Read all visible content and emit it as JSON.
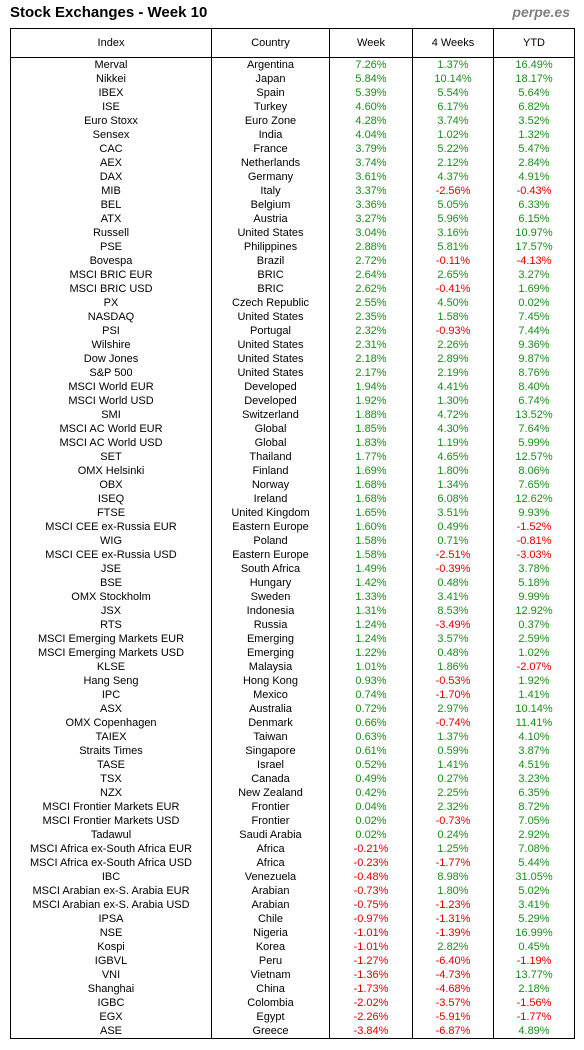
{
  "title": "Stock Exchanges - Week 10",
  "brand": "perpe.es",
  "columns": [
    "Index",
    "Country",
    "Week",
    "4 Weeks",
    "YTD"
  ],
  "colors": {
    "positive": "#1f8a1f",
    "negative": "#e00000"
  },
  "rows": [
    [
      "Merval",
      "Argentina",
      "7.26%",
      "1.37%",
      "16.49%"
    ],
    [
      "Nikkei",
      "Japan",
      "5.84%",
      "10.14%",
      "18.17%"
    ],
    [
      "IBEX",
      "Spain",
      "5.39%",
      "5.54%",
      "5.64%"
    ],
    [
      "ISE",
      "Turkey",
      "4.60%",
      "6.17%",
      "6.82%"
    ],
    [
      "Euro Stoxx",
      "Euro Zone",
      "4.28%",
      "3.74%",
      "3.52%"
    ],
    [
      "Sensex",
      "India",
      "4.04%",
      "1.02%",
      "1.32%"
    ],
    [
      "CAC",
      "France",
      "3.79%",
      "5.22%",
      "5.47%"
    ],
    [
      "AEX",
      "Netherlands",
      "3.74%",
      "2.12%",
      "2.84%"
    ],
    [
      "DAX",
      "Germany",
      "3.61%",
      "4.37%",
      "4.91%"
    ],
    [
      "MIB",
      "Italy",
      "3.37%",
      "-2.56%",
      "-0.43%"
    ],
    [
      "BEL",
      "Belgium",
      "3.36%",
      "5.05%",
      "6.33%"
    ],
    [
      "ATX",
      "Austria",
      "3.27%",
      "5.96%",
      "6.15%"
    ],
    [
      "Russell",
      "United States",
      "3.04%",
      "3.16%",
      "10.97%"
    ],
    [
      "PSE",
      "Philippines",
      "2.88%",
      "5.81%",
      "17.57%"
    ],
    [
      "Bovespa",
      "Brazil",
      "2.72%",
      "-0.11%",
      "-4.13%"
    ],
    [
      "MSCI BRIC EUR",
      "BRIC",
      "2.64%",
      "2.65%",
      "3.27%"
    ],
    [
      "MSCI BRIC USD",
      "BRIC",
      "2.62%",
      "-0.41%",
      "1.69%"
    ],
    [
      "PX",
      "Czech Republic",
      "2.55%",
      "4.50%",
      "0.02%"
    ],
    [
      "NASDAQ",
      "United States",
      "2.35%",
      "1.58%",
      "7.45%"
    ],
    [
      "PSI",
      "Portugal",
      "2.32%",
      "-0.93%",
      "7.44%"
    ],
    [
      "Wilshire",
      "United States",
      "2.31%",
      "2.26%",
      "9.36%"
    ],
    [
      "Dow Jones",
      "United States",
      "2.18%",
      "2.89%",
      "9.87%"
    ],
    [
      "S&P 500",
      "United States",
      "2.17%",
      "2.19%",
      "8.76%"
    ],
    [
      "MSCI World EUR",
      "Developed",
      "1.94%",
      "4.41%",
      "8.40%"
    ],
    [
      "MSCI World USD",
      "Developed",
      "1.92%",
      "1.30%",
      "6.74%"
    ],
    [
      "SMI",
      "Switzerland",
      "1.88%",
      "4.72%",
      "13.52%"
    ],
    [
      "MSCI AC World EUR",
      "Global",
      "1.85%",
      "4.30%",
      "7.64%"
    ],
    [
      "MSCI AC World USD",
      "Global",
      "1.83%",
      "1.19%",
      "5.99%"
    ],
    [
      "SET",
      "Thailand",
      "1.77%",
      "4.65%",
      "12.57%"
    ],
    [
      "OMX Helsinki",
      "Finland",
      "1.69%",
      "1.80%",
      "8.06%"
    ],
    [
      "OBX",
      "Norway",
      "1.68%",
      "1.34%",
      "7.65%"
    ],
    [
      "ISEQ",
      "Ireland",
      "1.68%",
      "6.08%",
      "12.62%"
    ],
    [
      "FTSE",
      "United Kingdom",
      "1.65%",
      "3.51%",
      "9.93%"
    ],
    [
      "MSCI CEE ex-Russia EUR",
      "Eastern Europe",
      "1.60%",
      "0.49%",
      "-1.52%"
    ],
    [
      "WIG",
      "Poland",
      "1.58%",
      "0.71%",
      "-0.81%"
    ],
    [
      "MSCI CEE ex-Russia USD",
      "Eastern Europe",
      "1.58%",
      "-2.51%",
      "-3.03%"
    ],
    [
      "JSE",
      "South Africa",
      "1.49%",
      "-0.39%",
      "3.78%"
    ],
    [
      "BSE",
      "Hungary",
      "1.42%",
      "0.48%",
      "5.18%"
    ],
    [
      "OMX Stockholm",
      "Sweden",
      "1.33%",
      "3.41%",
      "9.99%"
    ],
    [
      "JSX",
      "Indonesia",
      "1.31%",
      "8.53%",
      "12.92%"
    ],
    [
      "RTS",
      "Russia",
      "1.24%",
      "-3.49%",
      "0.37%"
    ],
    [
      "MSCI Emerging Markets EUR",
      "Emerging",
      "1.24%",
      "3.57%",
      "2.59%"
    ],
    [
      "MSCI Emerging Markets USD",
      "Emerging",
      "1.22%",
      "0.48%",
      "1.02%"
    ],
    [
      "KLSE",
      "Malaysia",
      "1.01%",
      "1.86%",
      "-2.07%"
    ],
    [
      "Hang Seng",
      "Hong Kong",
      "0.93%",
      "-0.53%",
      "1.92%"
    ],
    [
      "IPC",
      "Mexico",
      "0.74%",
      "-1.70%",
      "1.41%"
    ],
    [
      "ASX",
      "Australia",
      "0.72%",
      "2.97%",
      "10.14%"
    ],
    [
      "OMX Copenhagen",
      "Denmark",
      "0.66%",
      "-0.74%",
      "11.41%"
    ],
    [
      "TAIEX",
      "Taiwan",
      "0.63%",
      "1.37%",
      "4.10%"
    ],
    [
      "Straits Times",
      "Singapore",
      "0.61%",
      "0.59%",
      "3.87%"
    ],
    [
      "TASE",
      "Israel",
      "0.52%",
      "1.41%",
      "4.51%"
    ],
    [
      "TSX",
      "Canada",
      "0.49%",
      "0.27%",
      "3.23%"
    ],
    [
      "NZX",
      "New Zealand",
      "0.42%",
      "2.25%",
      "6.35%"
    ],
    [
      "MSCI Frontier Markets EUR",
      "Frontier",
      "0.04%",
      "2.32%",
      "8.72%"
    ],
    [
      "MSCI Frontier Markets USD",
      "Frontier",
      "0.02%",
      "-0.73%",
      "7.05%"
    ],
    [
      "Tadawul",
      "Saudi Arabia",
      "0.02%",
      "0.24%",
      "2.92%"
    ],
    [
      "MSCI Africa ex-South Africa EUR",
      "Africa",
      "-0.21%",
      "1.25%",
      "7.08%"
    ],
    [
      "MSCI Africa ex-South Africa USD",
      "Africa",
      "-0.23%",
      "-1.77%",
      "5.44%"
    ],
    [
      "IBC",
      "Venezuela",
      "-0.48%",
      "8.98%",
      "31.05%"
    ],
    [
      "MSCI Arabian ex-S. Arabia EUR",
      "Arabian",
      "-0.73%",
      "1.80%",
      "5.02%"
    ],
    [
      "MSCI Arabian ex-S. Arabia USD",
      "Arabian",
      "-0.75%",
      "-1.23%",
      "3.41%"
    ],
    [
      "IPSA",
      "Chile",
      "-0.97%",
      "-1.31%",
      "5.29%"
    ],
    [
      "NSE",
      "Nigeria",
      "-1.01%",
      "-1.39%",
      "16.99%"
    ],
    [
      "Kospi",
      "Korea",
      "-1.01%",
      "2.82%",
      "0.45%"
    ],
    [
      "IGBVL",
      "Peru",
      "-1.27%",
      "-6.40%",
      "-1.19%"
    ],
    [
      "VNI",
      "Vietnam",
      "-1.36%",
      "-4.73%",
      "13.77%"
    ],
    [
      "Shanghai",
      "China",
      "-1.73%",
      "-4.68%",
      "2.18%"
    ],
    [
      "IGBC",
      "Colombia",
      "-2.02%",
      "-3.57%",
      "-1.56%"
    ],
    [
      "EGX",
      "Egypt",
      "-2.26%",
      "-5.91%",
      "-1.77%"
    ],
    [
      "ASE",
      "Greece",
      "-3.84%",
      "-6.87%",
      "4.89%"
    ]
  ]
}
